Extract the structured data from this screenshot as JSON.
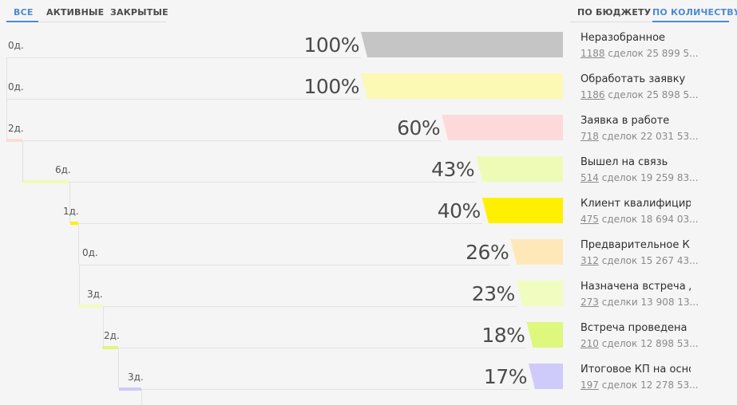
{
  "filter_tabs": [
    {
      "label": "ВСЕ",
      "active": true
    },
    {
      "label": "АКТИВНЫЕ",
      "active": false
    },
    {
      "label": "ЗАКРЫТЫЕ",
      "active": false
    }
  ],
  "mode_tabs": [
    {
      "label": "ПО БЮДЖЕТУ",
      "active": false
    },
    {
      "label": "ПО КОЛИЧЕСТВУ",
      "active": true
    }
  ],
  "colors": {
    "accent": "#4c8bd0"
  },
  "stages": [
    {
      "name": "Неразобранное",
      "count": "1188",
      "rest": "сделок 25 899 5...",
      "percent": 100,
      "percent_label": "100%",
      "days": "0д.",
      "color": "#c5c5c5"
    },
    {
      "name": "Обработать заявку",
      "count": "1186",
      "rest": "сделок 25 898 5...",
      "percent": 100,
      "percent_label": "100%",
      "days": "0д.",
      "color": "#fbf9b3"
    },
    {
      "name": "Заявка в работе",
      "count": "718",
      "rest": "сделок 22 031 53...",
      "percent": 60,
      "percent_label": "60%",
      "days": "2д.",
      "color": "#fed9d9"
    },
    {
      "name": "Вышел на связь",
      "count": "514",
      "rest": "сделок 19 259 83...",
      "percent": 43,
      "percent_label": "43%",
      "days": "6д.",
      "color": "#eefbb7"
    },
    {
      "name": "Клиент квалифицирован",
      "count": "475",
      "rest": "сделок 18 694 03...",
      "percent": 40,
      "percent_label": "40%",
      "days": "1д.",
      "color": "#fff000"
    },
    {
      "name": "Предварительное КП",
      "count": "312",
      "rest": "сделок 15 267 43...",
      "percent": 26,
      "percent_label": "26%",
      "days": "0д.",
      "color": "#ffe8b8"
    },
    {
      "name": "Назначена встреча для",
      "count": "273",
      "rest": "сделки 13 908 13...",
      "percent": 23,
      "percent_label": "23%",
      "days": "3д.",
      "color": "#f1fcc0"
    },
    {
      "name": "Встреча проведена -",
      "count": "210",
      "rest": "сделок 12 898 53...",
      "percent": 18,
      "percent_label": "18%",
      "days": "2д.",
      "color": "#def77d"
    },
    {
      "name": "Итоговое КП на основе",
      "count": "197",
      "rest": "сделок 12 278 53...",
      "percent": 17,
      "percent_label": "17%",
      "days": "3д.",
      "color": "#cecbfa"
    }
  ]
}
